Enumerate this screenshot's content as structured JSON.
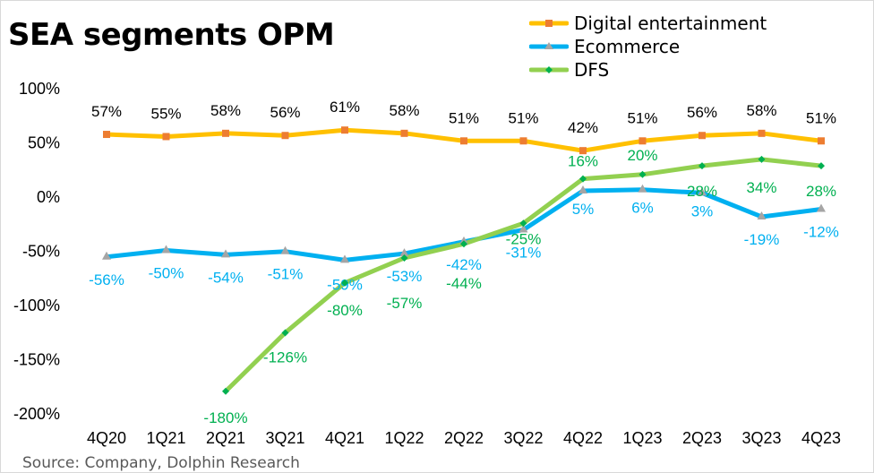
{
  "chart_data": {
    "type": "line",
    "title": "SEA segments OPM",
    "source": "Source: Company, Dolphin Research",
    "categories": [
      "4Q20",
      "1Q21",
      "2Q21",
      "3Q21",
      "4Q21",
      "1Q22",
      "2Q22",
      "3Q22",
      "4Q22",
      "1Q23",
      "2Q23",
      "3Q23",
      "4Q23"
    ],
    "yticks": [
      "100%",
      "50%",
      "0%",
      "-50%",
      "-100%",
      "-150%",
      "-200%"
    ],
    "ylim": [
      -200,
      100
    ],
    "yunit": "%",
    "grid": false,
    "legend_position": "top-right",
    "series": [
      {
        "name": "Digital entertainment",
        "color": "#FFC000",
        "marker": "square",
        "marker_color": "#ED7D31",
        "label_color": "#000000",
        "values": [
          57,
          55,
          58,
          56,
          61,
          58,
          51,
          51,
          42,
          51,
          56,
          58,
          51
        ]
      },
      {
        "name": "Ecommerce",
        "color": "#00B0F0",
        "marker": "triangle",
        "marker_color": "#A5A5A5",
        "label_color": "#00B0F0",
        "values": [
          -56,
          -50,
          -54,
          -51,
          -59,
          -53,
          -42,
          -31,
          5,
          6,
          3,
          -19,
          -12
        ]
      },
      {
        "name": "DFS",
        "color": "#92D050",
        "marker": "diamond",
        "marker_color": "#00B050",
        "label_color": "#00B050",
        "values": [
          null,
          null,
          -180,
          -126,
          -80,
          -57,
          -44,
          -25,
          16,
          20,
          28,
          34,
          28
        ]
      }
    ]
  }
}
